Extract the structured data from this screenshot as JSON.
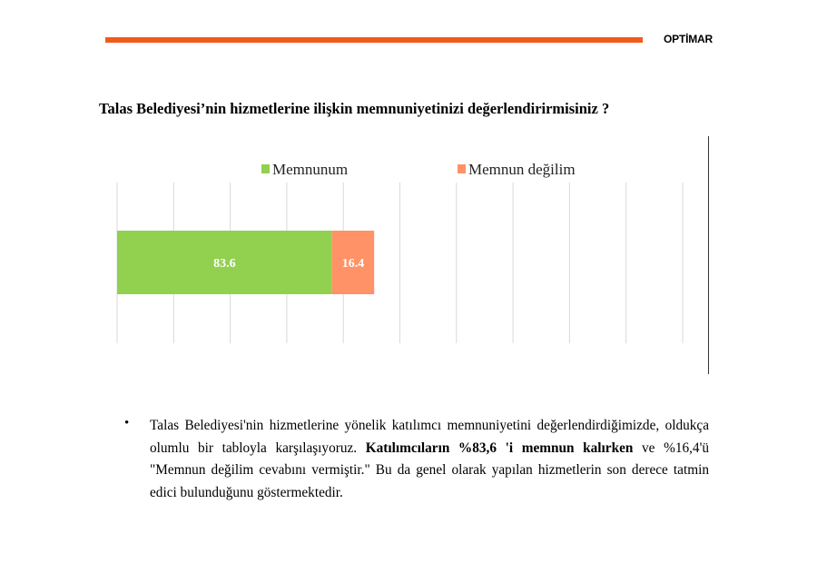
{
  "header": {
    "brand": "OPTİMAR",
    "accent_color": "#f25a1b"
  },
  "title": "Talas Belediyesi’nin hizmetlerine ilişkin memnuniyetinizi değerlendirirmisiniz ?",
  "chart_data": {
    "type": "bar",
    "orientation": "horizontal",
    "stacked": true,
    "categories": [
      ""
    ],
    "series": [
      {
        "name": "Memnunum",
        "values": [
          83.6
        ],
        "color": "#92d050"
      },
      {
        "name": "Memnun değilim",
        "values": [
          16.4
        ],
        "color": "#ff9266"
      }
    ],
    "data_labels": [
      "83.6",
      "16.4"
    ],
    "xlim": [
      0,
      220
    ],
    "grid": true,
    "legend": "top"
  },
  "body": {
    "bullet": "•",
    "text_1": "Talas Belediyesi'nin hizmetlerine yönelik katılımcı memnuniyetini değerlendirdiğimizde, oldukça olumlu bir tabloyla karşılaşıyoruz. ",
    "text_bold": "Katılımcıların %83,6 'i memnun kalırken",
    "text_2": "  ve %16,4'ü \"Memnun değilim cevabını vermiştir.\" Bu da genel olarak yapılan hizmetlerin son derece tatmin edici bulunduğunu göstermektedir."
  }
}
